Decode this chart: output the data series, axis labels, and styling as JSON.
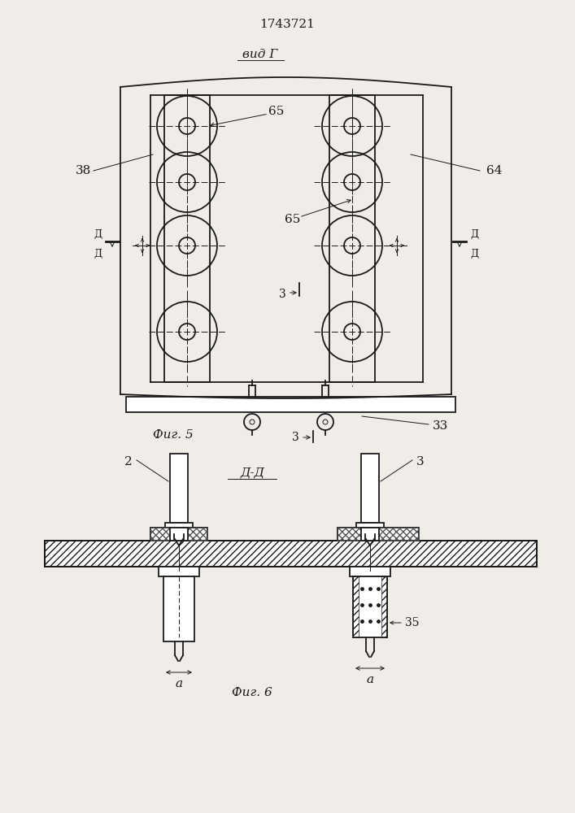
{
  "title": "1743721",
  "fig5_label": "вид Г",
  "fig5_caption": "Фиг. 5",
  "fig6_caption": "Фиг. 6",
  "section_label": "Д-Д",
  "bg_color": "#f0ede8",
  "line_color": "#1a1a1a",
  "label_38": "38",
  "label_64": "64",
  "label_65a": "65",
  "label_65b": "65",
  "label_3_arrow": "3",
  "label_33": "33",
  "label_2": "2",
  "label_3b": "3",
  "label_35": "35",
  "label_a": "a",
  "label_D1": "Д",
  "label_D2": "Д"
}
